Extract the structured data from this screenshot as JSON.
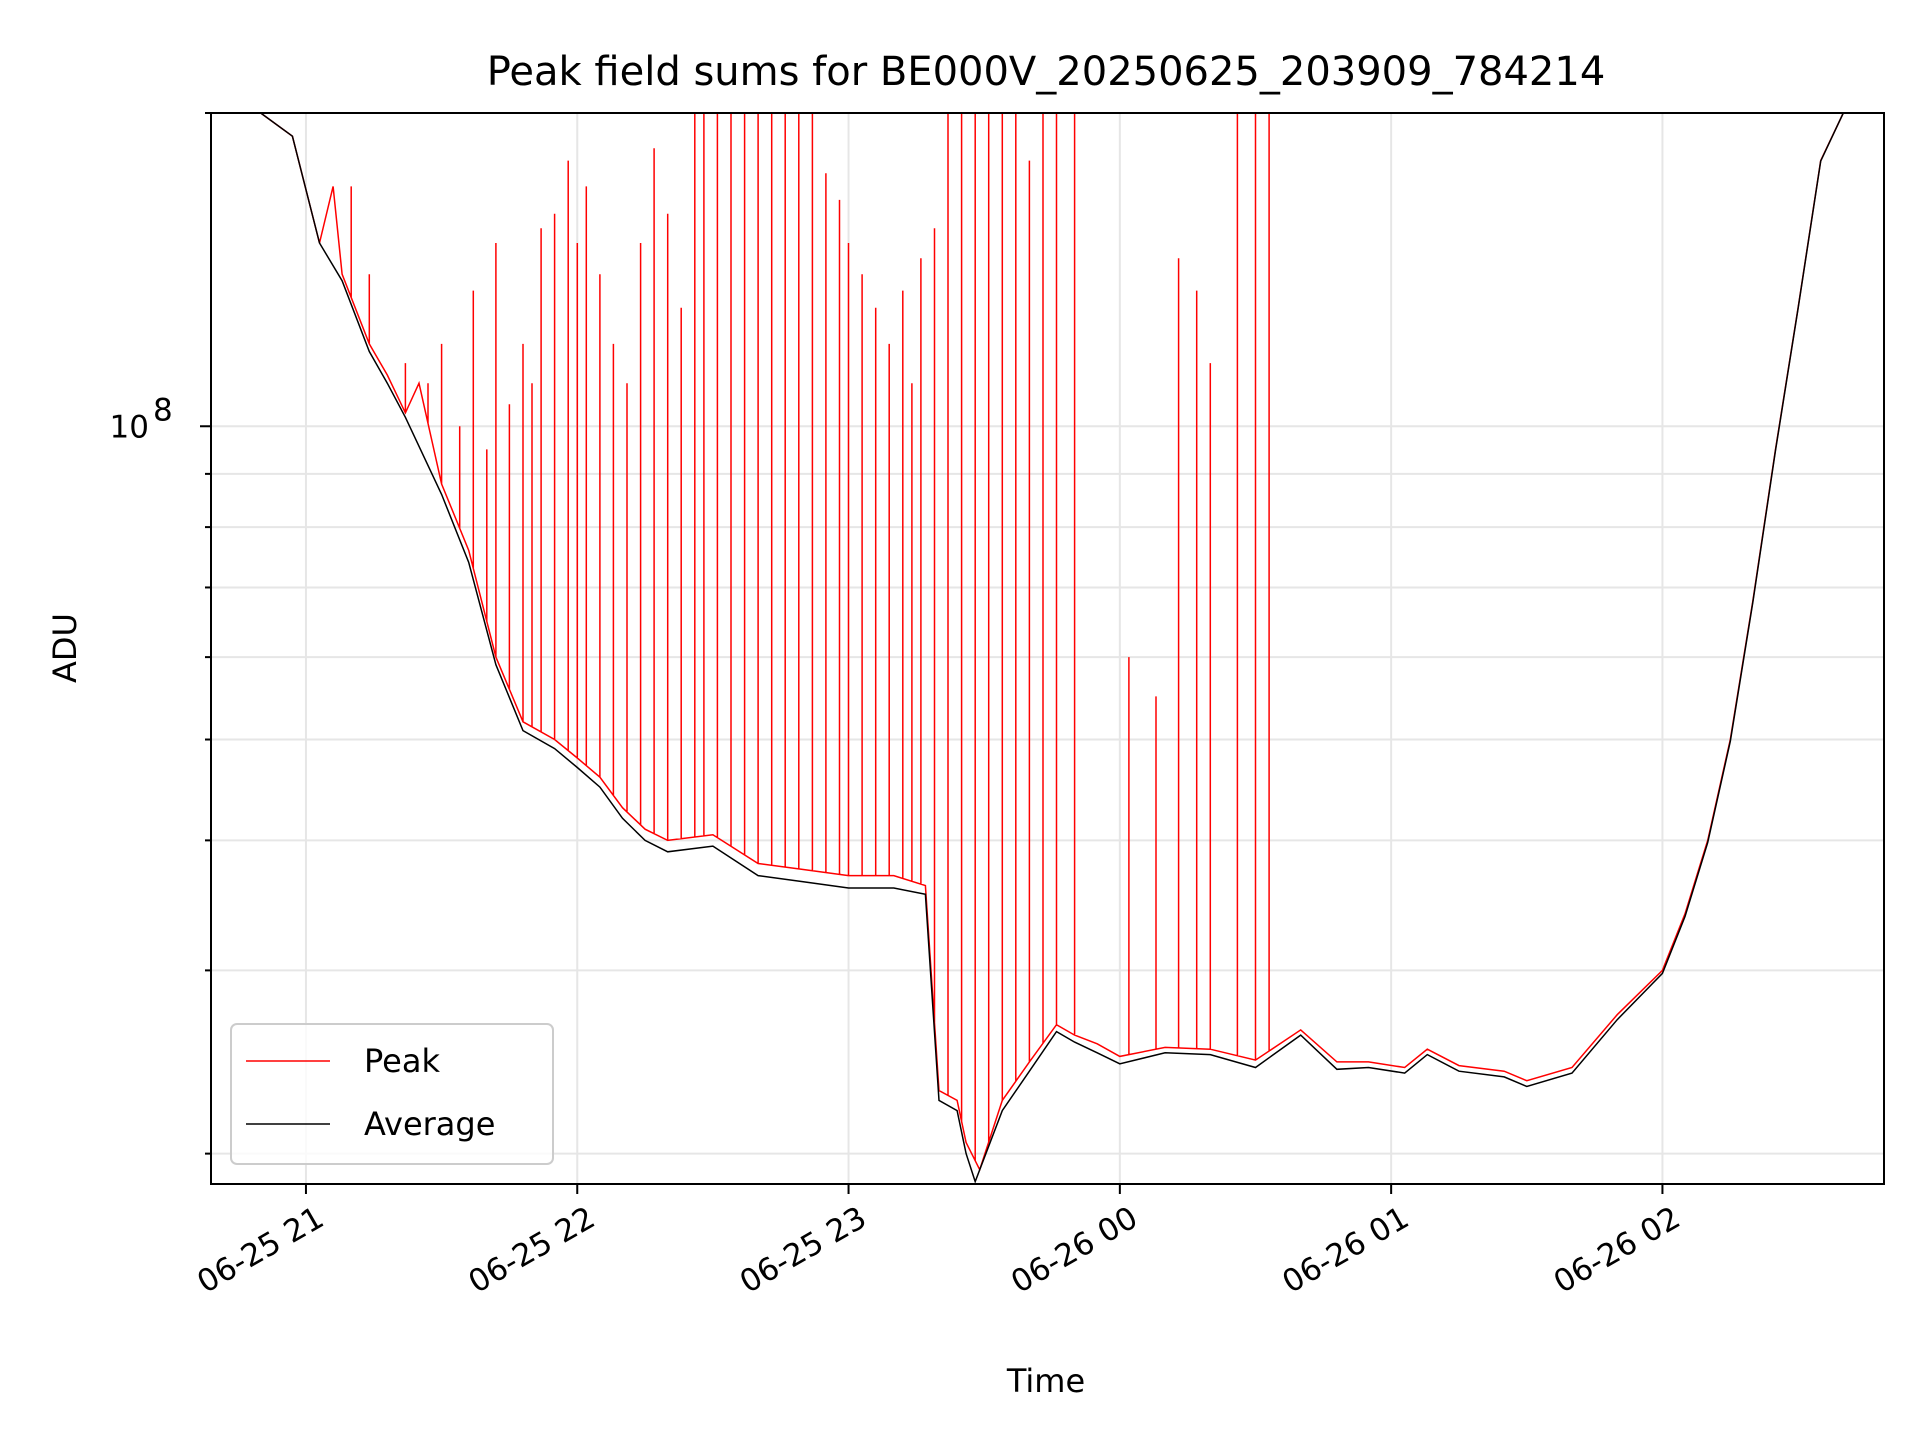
{
  "chart_data": {
    "type": "line",
    "title": "Peak field sums for BE000V_20250625_203909_784214",
    "xlabel": "Time",
    "ylabel": "ADU",
    "y_scale": "log",
    "ylim": [
      18700000,
      200000000
    ],
    "x_range": [
      "2025-06-25 20:39",
      "2025-06-26 02:49"
    ],
    "grid": true,
    "legend_position": "lower left",
    "x_ticks": [
      {
        "t": "2025-06-25 21:00",
        "label": "06-25 21"
      },
      {
        "t": "2025-06-25 22:00",
        "label": "06-25 22"
      },
      {
        "t": "2025-06-25 23:00",
        "label": "06-25 23"
      },
      {
        "t": "2025-06-26 00:00",
        "label": "06-26 00"
      },
      {
        "t": "2025-06-26 01:00",
        "label": "06-26 01"
      },
      {
        "t": "2025-06-26 02:00",
        "label": "06-26 02"
      }
    ],
    "y_major_ticks": [
      {
        "value": 100000000,
        "base": "10",
        "exp": "8"
      }
    ],
    "y_minor_ticks": [
      20000000,
      30000000,
      40000000,
      50000000,
      60000000,
      70000000,
      80000000,
      90000000,
      200000000
    ],
    "series": [
      {
        "name": "Peak",
        "color": "#ff0000",
        "points": [
          [
            "2025-06-25 20:39",
            200000000
          ],
          [
            "2025-06-25 20:50",
            200000000
          ],
          [
            "2025-06-25 20:57",
            190000000
          ],
          [
            "2025-06-25 21:03",
            150000000
          ],
          [
            "2025-06-25 21:06",
            170000000
          ],
          [
            "2025-06-25 21:08",
            140000000
          ],
          [
            "2025-06-25 21:14",
            120000000
          ],
          [
            "2025-06-25 21:18",
            112000000
          ],
          [
            "2025-06-25 21:22",
            103000000
          ],
          [
            "2025-06-25 21:25",
            110000000
          ],
          [
            "2025-06-25 21:30",
            88000000
          ],
          [
            "2025-06-25 21:36",
            76000000
          ],
          [
            "2025-06-25 21:42",
            60000000
          ],
          [
            "2025-06-25 21:48",
            52000000
          ],
          [
            "2025-06-25 21:55",
            50000000
          ],
          [
            "2025-06-25 22:00",
            48000000
          ],
          [
            "2025-06-25 22:05",
            46000000
          ],
          [
            "2025-06-25 22:10",
            43000000
          ],
          [
            "2025-06-25 22:15",
            41000000
          ],
          [
            "2025-06-25 22:20",
            40000000
          ],
          [
            "2025-06-25 22:30",
            40500000
          ],
          [
            "2025-06-25 22:40",
            38000000
          ],
          [
            "2025-06-25 22:50",
            37500000
          ],
          [
            "2025-06-25 23:00",
            37000000
          ],
          [
            "2025-06-25 23:10",
            37000000
          ],
          [
            "2025-06-25 23:17",
            36200000
          ],
          [
            "2025-06-25 23:20",
            23000000
          ],
          [
            "2025-06-25 23:24",
            22500000
          ],
          [
            "2025-06-25 23:26",
            20500000
          ],
          [
            "2025-06-25 23:29",
            19300000
          ],
          [
            "2025-06-25 23:34",
            22500000
          ],
          [
            "2025-06-25 23:40",
            24500000
          ],
          [
            "2025-06-25 23:46",
            26600000
          ],
          [
            "2025-06-25 23:50",
            26000000
          ],
          [
            "2025-06-25 23:55",
            25500000
          ],
          [
            "2025-06-26 00:00",
            24800000
          ],
          [
            "2025-06-26 00:10",
            25300000
          ],
          [
            "2025-06-26 00:20",
            25200000
          ],
          [
            "2025-06-26 00:30",
            24600000
          ],
          [
            "2025-06-26 00:40",
            26300000
          ],
          [
            "2025-06-26 00:48",
            24500000
          ],
          [
            "2025-06-26 00:55",
            24500000
          ],
          [
            "2025-06-26 01:03",
            24200000
          ],
          [
            "2025-06-26 01:08",
            25200000
          ],
          [
            "2025-06-26 01:15",
            24300000
          ],
          [
            "2025-06-26 01:25",
            24000000
          ],
          [
            "2025-06-26 01:30",
            23500000
          ],
          [
            "2025-06-26 01:40",
            24200000
          ],
          [
            "2025-06-26 01:50",
            27200000
          ],
          [
            "2025-06-26 02:00",
            30000000
          ],
          [
            "2025-06-26 02:05",
            34000000
          ],
          [
            "2025-06-26 02:10",
            40000000
          ],
          [
            "2025-06-26 02:15",
            50000000
          ],
          [
            "2025-06-26 02:20",
            68000000
          ],
          [
            "2025-06-26 02:25",
            95000000
          ],
          [
            "2025-06-26 02:30",
            130000000
          ],
          [
            "2025-06-26 02:35",
            180000000
          ],
          [
            "2025-06-26 02:40",
            200000000
          ],
          [
            "2025-06-26 02:49",
            200000000
          ]
        ],
        "spikes": [
          [
            "2025-06-25 21:10",
            170000000
          ],
          [
            "2025-06-25 21:14",
            140000000
          ],
          [
            "2025-06-25 21:22",
            115000000
          ],
          [
            "2025-06-25 21:27",
            110000000
          ],
          [
            "2025-06-25 21:30",
            120000000
          ],
          [
            "2025-06-25 21:34",
            100000000
          ],
          [
            "2025-06-25 21:37",
            135000000
          ],
          [
            "2025-06-25 21:40",
            95000000
          ],
          [
            "2025-06-25 21:42",
            150000000
          ],
          [
            "2025-06-25 21:45",
            105000000
          ],
          [
            "2025-06-25 21:48",
            120000000
          ],
          [
            "2025-06-25 21:50",
            110000000
          ],
          [
            "2025-06-25 21:52",
            155000000
          ],
          [
            "2025-06-25 21:55",
            160000000
          ],
          [
            "2025-06-25 21:58",
            180000000
          ],
          [
            "2025-06-25 22:00",
            150000000
          ],
          [
            "2025-06-25 22:02",
            170000000
          ],
          [
            "2025-06-25 22:05",
            140000000
          ],
          [
            "2025-06-25 22:08",
            120000000
          ],
          [
            "2025-06-25 22:11",
            110000000
          ],
          [
            "2025-06-25 22:14",
            150000000
          ],
          [
            "2025-06-25 22:17",
            185000000
          ],
          [
            "2025-06-25 22:20",
            160000000
          ],
          [
            "2025-06-25 22:23",
            130000000
          ],
          [
            "2025-06-25 22:26",
            200000000
          ],
          [
            "2025-06-25 22:28",
            200000000
          ],
          [
            "2025-06-25 22:31",
            200000000
          ],
          [
            "2025-06-25 22:34",
            200000000
          ],
          [
            "2025-06-25 22:37",
            200000000
          ],
          [
            "2025-06-25 22:40",
            200000000
          ],
          [
            "2025-06-25 22:43",
            200000000
          ],
          [
            "2025-06-25 22:46",
            200000000
          ],
          [
            "2025-06-25 22:49",
            200000000
          ],
          [
            "2025-06-25 22:52",
            200000000
          ],
          [
            "2025-06-25 22:55",
            175000000
          ],
          [
            "2025-06-25 22:58",
            165000000
          ],
          [
            "2025-06-25 23:00",
            150000000
          ],
          [
            "2025-06-25 23:03",
            140000000
          ],
          [
            "2025-06-25 23:06",
            130000000
          ],
          [
            "2025-06-25 23:09",
            120000000
          ],
          [
            "2025-06-25 23:12",
            135000000
          ],
          [
            "2025-06-25 23:14",
            110000000
          ],
          [
            "2025-06-25 23:16",
            145000000
          ],
          [
            "2025-06-25 23:19",
            155000000
          ],
          [
            "2025-06-25 23:22",
            200000000
          ],
          [
            "2025-06-25 23:25",
            200000000
          ],
          [
            "2025-06-25 23:28",
            200000000
          ],
          [
            "2025-06-25 23:31",
            200000000
          ],
          [
            "2025-06-25 23:34",
            200000000
          ],
          [
            "2025-06-25 23:37",
            200000000
          ],
          [
            "2025-06-25 23:40",
            180000000
          ],
          [
            "2025-06-25 23:43",
            200000000
          ],
          [
            "2025-06-25 23:46",
            200000000
          ],
          [
            "2025-06-25 23:50",
            200000000
          ],
          [
            "2025-06-26 00:02",
            60000000
          ],
          [
            "2025-06-26 00:08",
            55000000
          ],
          [
            "2025-06-26 00:13",
            145000000
          ],
          [
            "2025-06-26 00:17",
            135000000
          ],
          [
            "2025-06-26 00:20",
            115000000
          ],
          [
            "2025-06-26 00:26",
            200000000
          ],
          [
            "2025-06-26 00:30",
            200000000
          ],
          [
            "2025-06-26 00:33",
            200000000
          ]
        ]
      },
      {
        "name": "Average",
        "color": "#000000",
        "points": [
          [
            "2025-06-25 20:39",
            200000000
          ],
          [
            "2025-06-25 20:50",
            200000000
          ],
          [
            "2025-06-25 20:57",
            190000000
          ],
          [
            "2025-06-25 21:03",
            150000000
          ],
          [
            "2025-06-25 21:08",
            138000000
          ],
          [
            "2025-06-25 21:14",
            118000000
          ],
          [
            "2025-06-25 21:18",
            110000000
          ],
          [
            "2025-06-25 21:22",
            102000000
          ],
          [
            "2025-06-25 21:30",
            86000000
          ],
          [
            "2025-06-25 21:36",
            74000000
          ],
          [
            "2025-06-25 21:42",
            59000000
          ],
          [
            "2025-06-25 21:48",
            51000000
          ],
          [
            "2025-06-25 21:55",
            49000000
          ],
          [
            "2025-06-25 22:00",
            47000000
          ],
          [
            "2025-06-25 22:05",
            45000000
          ],
          [
            "2025-06-25 22:10",
            42000000
          ],
          [
            "2025-06-25 22:15",
            40000000
          ],
          [
            "2025-06-25 22:20",
            39000000
          ],
          [
            "2025-06-25 22:30",
            39500000
          ],
          [
            "2025-06-25 22:40",
            37000000
          ],
          [
            "2025-06-25 22:50",
            36500000
          ],
          [
            "2025-06-25 23:00",
            36000000
          ],
          [
            "2025-06-25 23:10",
            36000000
          ],
          [
            "2025-06-25 23:17",
            35500000
          ],
          [
            "2025-06-25 23:20",
            22500000
          ],
          [
            "2025-06-25 23:24",
            22000000
          ],
          [
            "2025-06-25 23:26",
            20000000
          ],
          [
            "2025-06-25 23:28",
            18800000
          ],
          [
            "2025-06-25 23:34",
            22000000
          ],
          [
            "2025-06-25 23:40",
            24000000
          ],
          [
            "2025-06-25 23:46",
            26200000
          ],
          [
            "2025-06-25 23:50",
            25600000
          ],
          [
            "2025-06-25 23:55",
            25000000
          ],
          [
            "2025-06-26 00:00",
            24400000
          ],
          [
            "2025-06-26 00:10",
            25000000
          ],
          [
            "2025-06-26 00:20",
            24900000
          ],
          [
            "2025-06-26 00:30",
            24200000
          ],
          [
            "2025-06-26 00:40",
            26000000
          ],
          [
            "2025-06-26 00:48",
            24100000
          ],
          [
            "2025-06-26 00:55",
            24200000
          ],
          [
            "2025-06-26 01:03",
            23900000
          ],
          [
            "2025-06-26 01:08",
            24900000
          ],
          [
            "2025-06-26 01:15",
            24000000
          ],
          [
            "2025-06-26 01:25",
            23700000
          ],
          [
            "2025-06-26 01:30",
            23200000
          ],
          [
            "2025-06-26 01:40",
            23900000
          ],
          [
            "2025-06-26 01:50",
            26900000
          ],
          [
            "2025-06-26 02:00",
            29800000
          ],
          [
            "2025-06-26 02:05",
            33800000
          ],
          [
            "2025-06-26 02:10",
            39800000
          ],
          [
            "2025-06-26 02:15",
            49800000
          ],
          [
            "2025-06-26 02:20",
            67800000
          ],
          [
            "2025-06-26 02:25",
            94800000
          ],
          [
            "2025-06-26 02:30",
            129800000
          ],
          [
            "2025-06-26 02:35",
            179800000
          ],
          [
            "2025-06-26 02:40",
            200000000
          ],
          [
            "2025-06-26 02:49",
            200000000
          ]
        ]
      }
    ]
  }
}
